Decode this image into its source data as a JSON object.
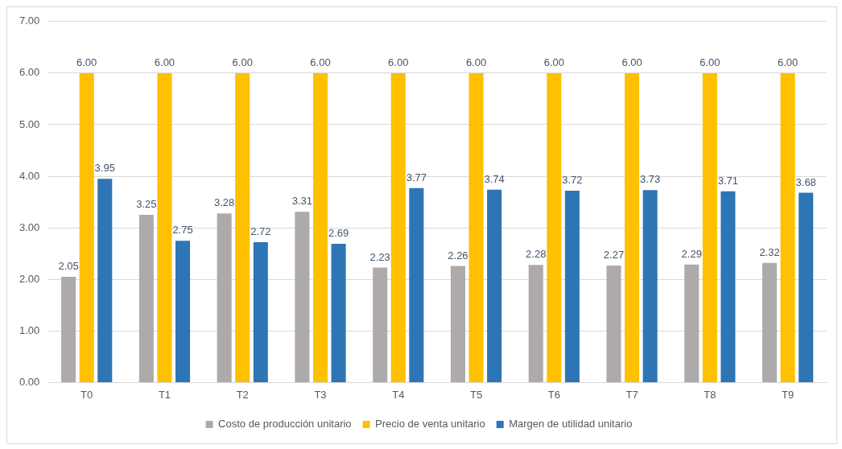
{
  "chart_data": {
    "type": "bar",
    "categories": [
      "T0",
      "T1",
      "T2",
      "T3",
      "T4",
      "T5",
      "T6",
      "T7",
      "T8",
      "T9"
    ],
    "series": [
      {
        "name": "Costo de producción unitario",
        "color": "#aeaaaa",
        "values": [
          2.05,
          3.25,
          3.28,
          3.31,
          2.23,
          2.26,
          2.28,
          2.27,
          2.29,
          2.32
        ],
        "value_labels": [
          "2.05",
          "3.25",
          "3.28",
          "3.31",
          "2.23",
          "2.26",
          "2.28",
          "2.27",
          "2.29",
          "2.32"
        ]
      },
      {
        "name": "Precio de venta unitario",
        "color": "#ffc000",
        "values": [
          6.0,
          6.0,
          6.0,
          6.0,
          6.0,
          6.0,
          6.0,
          6.0,
          6.0,
          6.0
        ],
        "value_labels": [
          "6.00",
          "6.00",
          "6.00",
          "6.00",
          "6.00",
          "6.00",
          "6.00",
          "6.00",
          "6.00",
          "6.00"
        ]
      },
      {
        "name": "Margen de utilidad unitario",
        "color": "#2e75b6",
        "values": [
          3.95,
          2.75,
          2.72,
          2.69,
          3.77,
          3.74,
          3.72,
          3.73,
          3.71,
          3.68
        ],
        "value_labels": [
          "3.95",
          "2.75",
          "2.72",
          "2.69",
          "3.77",
          "3.74",
          "3.72",
          "3.73",
          "3.71",
          "3.68"
        ]
      }
    ],
    "ylim": [
      0,
      7
    ],
    "yticks": [
      {
        "value": 0,
        "label": "0.00"
      },
      {
        "value": 1,
        "label": "1.00"
      },
      {
        "value": 2,
        "label": "2.00"
      },
      {
        "value": 3,
        "label": "3.00"
      },
      {
        "value": 4,
        "label": "4.00"
      },
      {
        "value": 5,
        "label": "5.00"
      },
      {
        "value": 6,
        "label": "6.00"
      },
      {
        "value": 7,
        "label": "7.00"
      }
    ],
    "grid": "y",
    "legend": "bottom"
  }
}
